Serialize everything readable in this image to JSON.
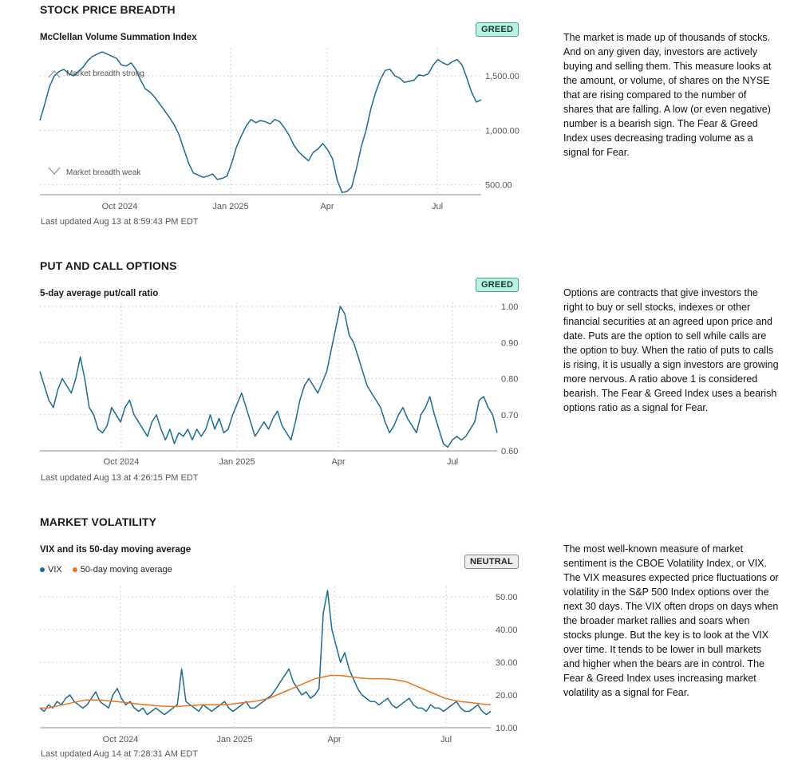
{
  "colors": {
    "primary_line": "#1b6b93",
    "ma_line": "#e8741e",
    "grid": "#d0d0d0",
    "axis_text": "#555555"
  },
  "sections": {
    "breadth": {
      "title": "STOCK PRICE BREADTH",
      "chart_title": "McClellan Volume Summation Index",
      "badge": "GREED",
      "annotation_strong": "Market breadth strong",
      "annotation_weak": "Market breadth weak",
      "updated": "Last updated Aug 13 at 8:59:43 PM EDT",
      "description": "The market is made up of thousands of stocks. And on any given day, investors are actively buying and selling them. This measure looks at the amount, or volume, of shares on the NYSE that are rising compared to the number of shares that are falling. A low (or even negative) number is a bearish sign. The Fear & Greed Index uses decreasing trading volume as a signal for Fear."
    },
    "putcall": {
      "title": "PUT AND CALL OPTIONS",
      "chart_title": "5-day average put/call ratio",
      "badge": "GREED",
      "updated": "Last updated Aug 13 at 4:26:15 PM EDT",
      "description": "Options are contracts that give investors the right to buy or sell stocks, indexes or other financial securities at an agreed upon price and date. Puts are the option to sell while calls are the option to buy. When the ratio of puts to calls is rising, it is usually a sign investors are growing more nervous. A ratio above 1 is considered bearish. The Fear & Greed Index uses a bearish options ratio as a signal for Fear."
    },
    "volatility": {
      "title": "MARKET VOLATILITY",
      "chart_title": "VIX and its 50-day moving average",
      "badge": "NEUTRAL",
      "legend_vix": "VIX",
      "legend_ma": "50-day moving average",
      "updated": "Last updated Aug 14 at 7:28:31 AM EDT",
      "description": "The most well-known measure of market sentiment is the CBOE Volatility Index, or VIX. The VIX measures expected price fluctuations or volatility in the S&P 500 Index options over the next 30 days. The VIX often drops on days when the broader market rallies and soars when stocks plunge. But the key is to look at the VIX over time. It tends to be lower in bull markets and higher when the bears are in control. The Fear & Greed Index uses increasing market volatility as a signal for Fear."
    }
  },
  "chart_data": [
    {
      "type": "line",
      "x_tick_labels": [
        "Oct 2024",
        "Jan 2025",
        "Apr",
        "Jul"
      ],
      "y_ticks": [
        500,
        1000,
        1500
      ],
      "y_tick_labels": [
        "500.00",
        "1,000.00",
        "1,500.00"
      ],
      "ylim": [
        410,
        1720
      ],
      "series": [
        {
          "values": [
            1090,
            1240,
            1400,
            1500,
            1540,
            1560,
            1520,
            1500,
            1540,
            1580,
            1640,
            1680,
            1700,
            1720,
            1700,
            1680,
            1660,
            1600,
            1590,
            1620,
            1560,
            1460,
            1380,
            1350,
            1300,
            1240,
            1180,
            1120,
            1050,
            960,
            830,
            700,
            610,
            590,
            570,
            580,
            600,
            550,
            560,
            580,
            700,
            850,
            950,
            1040,
            1100,
            1070,
            1090,
            1080,
            1060,
            1100,
            1080,
            1020,
            950,
            860,
            800,
            760,
            720,
            800,
            830,
            880,
            820,
            740,
            540,
            430,
            440,
            480,
            650,
            850,
            1000,
            1200,
            1350,
            1470,
            1550,
            1560,
            1500,
            1480,
            1440,
            1450,
            1460,
            1510,
            1500,
            1520,
            1600,
            1650,
            1620,
            1600,
            1630,
            1650,
            1600,
            1480,
            1350,
            1260,
            1280
          ]
        }
      ]
    },
    {
      "type": "line",
      "x_tick_labels": [
        "Oct 2024",
        "Jan 2025",
        "Apr",
        "Jul"
      ],
      "y_ticks": [
        0.6,
        0.7,
        0.8,
        0.9,
        1.0
      ],
      "y_tick_labels": [
        "0.60",
        "0.70",
        "0.80",
        "0.90",
        "1.00"
      ],
      "ylim": [
        0.6,
        1.0
      ],
      "series": [
        {
          "values": [
            0.82,
            0.78,
            0.74,
            0.72,
            0.77,
            0.8,
            0.78,
            0.76,
            0.8,
            0.86,
            0.8,
            0.72,
            0.7,
            0.66,
            0.65,
            0.67,
            0.72,
            0.7,
            0.68,
            0.72,
            0.74,
            0.7,
            0.68,
            0.66,
            0.64,
            0.68,
            0.7,
            0.66,
            0.63,
            0.66,
            0.62,
            0.65,
            0.64,
            0.66,
            0.63,
            0.66,
            0.64,
            0.66,
            0.7,
            0.66,
            0.69,
            0.65,
            0.66,
            0.7,
            0.73,
            0.76,
            0.72,
            0.68,
            0.64,
            0.66,
            0.68,
            0.66,
            0.69,
            0.71,
            0.67,
            0.65,
            0.63,
            0.68,
            0.74,
            0.78,
            0.8,
            0.78,
            0.76,
            0.79,
            0.82,
            0.88,
            0.94,
            1.0,
            0.98,
            0.92,
            0.9,
            0.86,
            0.82,
            0.78,
            0.76,
            0.74,
            0.72,
            0.68,
            0.65,
            0.67,
            0.7,
            0.72,
            0.69,
            0.67,
            0.65,
            0.7,
            0.72,
            0.75,
            0.7,
            0.66,
            0.62,
            0.61,
            0.63,
            0.64,
            0.63,
            0.64,
            0.66,
            0.68,
            0.74,
            0.75,
            0.72,
            0.7,
            0.65
          ]
        }
      ]
    },
    {
      "type": "line",
      "x_tick_labels": [
        "Oct 2024",
        "Jan 2025",
        "Apr",
        "Jul"
      ],
      "y_ticks": [
        10,
        20,
        30,
        40,
        50
      ],
      "y_tick_labels": [
        "10.00",
        "20.00",
        "30.00",
        "40.00",
        "50.00"
      ],
      "ylim": [
        10,
        52
      ],
      "legend": "top-left",
      "series": [
        {
          "name": "VIX",
          "values": [
            16,
            15,
            17,
            16,
            18,
            17,
            19,
            20,
            18,
            17,
            16,
            17,
            19,
            21,
            18,
            17,
            16,
            20,
            22,
            19,
            17,
            18,
            16,
            15,
            16,
            14,
            15,
            16,
            15,
            14,
            15,
            16,
            17,
            28,
            18,
            17,
            16,
            15,
            17,
            16,
            15,
            16,
            17,
            18,
            16,
            15,
            16,
            17,
            18,
            16,
            16,
            17,
            18,
            19,
            20,
            22,
            24,
            26,
            28,
            24,
            22,
            20,
            21,
            19,
            20,
            22,
            45,
            52,
            40,
            35,
            30,
            33,
            28,
            25,
            22,
            20,
            19,
            18,
            18,
            17,
            18,
            19,
            17,
            16,
            17,
            18,
            19,
            17,
            16,
            16,
            15,
            17,
            16,
            16,
            15,
            16,
            17,
            18,
            16,
            15,
            15,
            16,
            17,
            15,
            14,
            15
          ]
        },
        {
          "name": "50-day moving average",
          "values": [
            16,
            16,
            16.5,
            17,
            17.5,
            18,
            18.5,
            18.5,
            18.5,
            18.2,
            18,
            17.8,
            17.5,
            17.2,
            17,
            16.8,
            16.6,
            16.5,
            16.5,
            16.7,
            16.8,
            17,
            17,
            17,
            17,
            17.2,
            17.5,
            17.8,
            18,
            18.5,
            19,
            20,
            21,
            22,
            23,
            24,
            25,
            25.5,
            26,
            26,
            25.8,
            25.5,
            25.2,
            25,
            25,
            25,
            24.8,
            24.5,
            24,
            23,
            22,
            21,
            20,
            19,
            18.5,
            18,
            17.8,
            17.5,
            17.2,
            17
          ]
        }
      ]
    }
  ]
}
